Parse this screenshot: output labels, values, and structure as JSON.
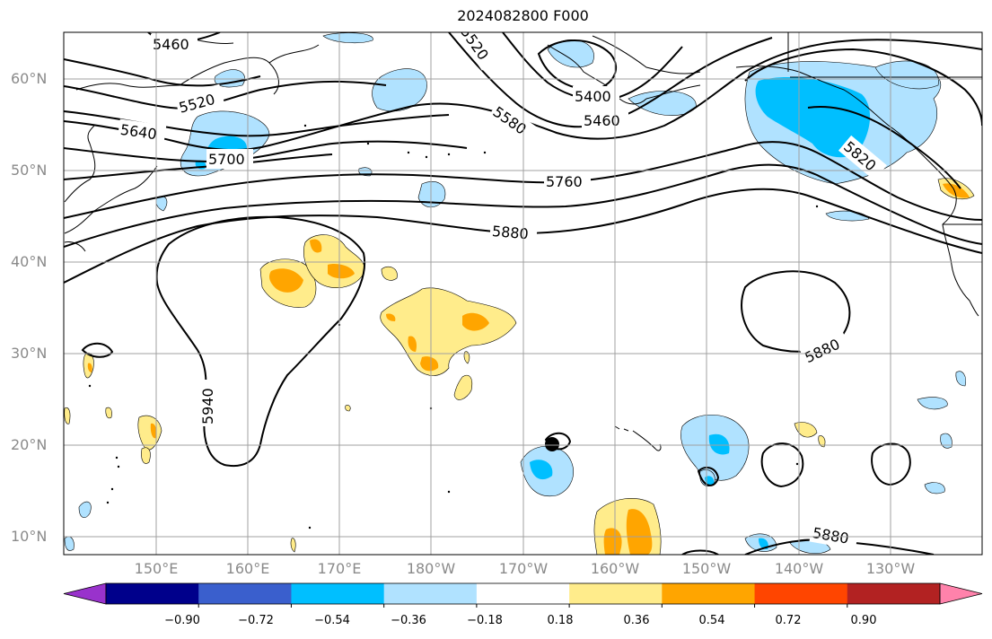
{
  "title": "2024082800 F000",
  "lat_labels": [
    "60°N",
    "50°N",
    "40°N",
    "30°N",
    "20°N",
    "10°N"
  ],
  "lon_labels": [
    "150°E",
    "160°E",
    "170°E",
    "180°W",
    "170°W",
    "160°W",
    "150°W",
    "140°W",
    "130°W"
  ],
  "colorbar": {
    "ticks": [
      "−0.90",
      "−0.72",
      "−0.54",
      "−0.36",
      "−0.18",
      "0.18",
      "0.36",
      "0.54",
      "0.72",
      "0.90"
    ],
    "colors": [
      "#9932CC",
      "#00008B",
      "#3A5FCD",
      "#00BFFF",
      "#B0E2FF",
      "#FFFFFF",
      "#FFEC8B",
      "#FFA500",
      "#FF4500",
      "#B22222",
      "#FF82AB"
    ]
  },
  "contour_labels": [
    "5460",
    "5520",
    "5520",
    "5640",
    "5700",
    "5580",
    "5400",
    "5460",
    "5760",
    "5820",
    "5880",
    "5940",
    "5880",
    "5880"
  ]
}
